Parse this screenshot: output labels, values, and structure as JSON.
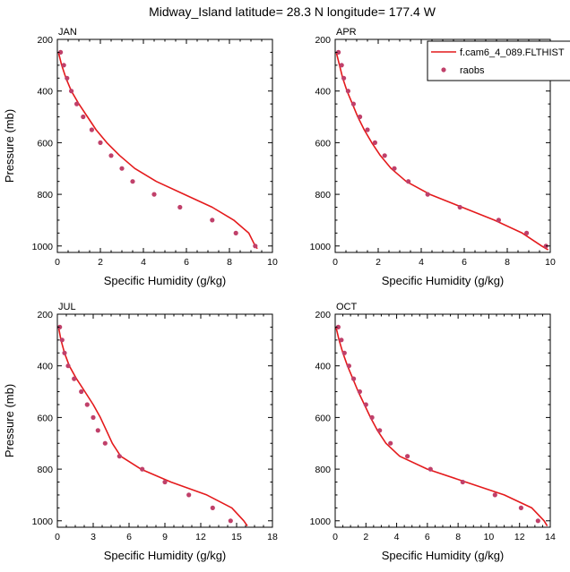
{
  "figure": {
    "title": "Midway_Island  latitude= 28.3 N longitude= 177.4 W",
    "colors": {
      "model": "#e41a1c",
      "obs": "#c0406a",
      "axis": "#000000"
    }
  },
  "legend": {
    "items": [
      {
        "label": "f.cam6_4_089.FLTHIST",
        "style": "line"
      },
      {
        "label": "raobs",
        "style": "marker"
      }
    ]
  },
  "chart_data": [
    {
      "type": "line",
      "title": "JAN",
      "xlabel": "Specific Humidity (g/kg)",
      "ylabel": "Pressure (mb)",
      "xlim": [
        0,
        10
      ],
      "ylim": [
        1025,
        200
      ],
      "xticks": [
        0,
        2,
        4,
        6,
        8,
        10
      ],
      "yticks": [
        200,
        400,
        600,
        800,
        1000
      ],
      "series": [
        {
          "name": "f.cam6_4_089.FLTHIST",
          "kind": "line",
          "x": [
            0.05,
            0.2,
            0.4,
            0.65,
            1.0,
            1.4,
            1.8,
            2.3,
            2.9,
            3.6,
            4.6,
            5.9,
            7.2,
            8.2,
            8.9,
            9.2,
            9.3
          ],
          "y": [
            250,
            300,
            350,
            400,
            450,
            500,
            550,
            600,
            650,
            700,
            750,
            800,
            850,
            900,
            950,
            1000,
            1010
          ]
        },
        {
          "name": "raobs",
          "kind": "scatter",
          "x": [
            0.15,
            0.3,
            0.45,
            0.65,
            0.9,
            1.2,
            1.6,
            2.0,
            2.5,
            3.0,
            3.5,
            4.5,
            5.7,
            7.2,
            8.3,
            9.2
          ],
          "y": [
            250,
            300,
            350,
            400,
            450,
            500,
            550,
            600,
            650,
            700,
            750,
            800,
            850,
            900,
            950,
            1000
          ]
        }
      ]
    },
    {
      "type": "line",
      "title": "APR",
      "xlabel": "Specific Humidity (g/kg)",
      "ylabel": "",
      "xlim": [
        0,
        10
      ],
      "ylim": [
        1025,
        200
      ],
      "xticks": [
        0,
        2,
        4,
        6,
        8,
        10
      ],
      "yticks": [
        200,
        400,
        600,
        800,
        1000
      ],
      "series": [
        {
          "name": "f.cam6_4_089.FLTHIST",
          "kind": "line",
          "x": [
            0.05,
            0.2,
            0.35,
            0.55,
            0.8,
            1.05,
            1.35,
            1.7,
            2.1,
            2.6,
            3.3,
            4.4,
            5.9,
            7.4,
            8.7,
            9.6,
            9.9
          ],
          "y": [
            250,
            300,
            350,
            400,
            450,
            500,
            550,
            600,
            650,
            700,
            750,
            800,
            850,
            900,
            950,
            1000,
            1015
          ]
        },
        {
          "name": "raobs",
          "kind": "scatter",
          "x": [
            0.15,
            0.3,
            0.4,
            0.6,
            0.85,
            1.15,
            1.5,
            1.85,
            2.3,
            2.75,
            3.4,
            4.3,
            5.8,
            7.6,
            8.9,
            9.8
          ],
          "y": [
            250,
            300,
            350,
            400,
            450,
            500,
            550,
            600,
            650,
            700,
            750,
            800,
            850,
            900,
            950,
            1000
          ]
        }
      ]
    },
    {
      "type": "line",
      "title": "JUL",
      "xlabel": "Specific Humidity (g/kg)",
      "ylabel": "Pressure (mb)",
      "xlim": [
        0,
        18
      ],
      "ylim": [
        1025,
        200
      ],
      "xticks": [
        0,
        3,
        6,
        9,
        12,
        15,
        18
      ],
      "yticks": [
        200,
        400,
        600,
        800,
        1000
      ],
      "series": [
        {
          "name": "f.cam6_4_089.FLTHIST",
          "kind": "line",
          "x": [
            0.1,
            0.3,
            0.6,
            1.0,
            1.6,
            2.3,
            3.0,
            3.6,
            4.1,
            4.6,
            5.3,
            7.0,
            9.5,
            12.5,
            14.6,
            15.6,
            15.9
          ],
          "y": [
            250,
            300,
            350,
            400,
            450,
            500,
            550,
            600,
            650,
            700,
            750,
            800,
            850,
            900,
            950,
            1000,
            1020
          ]
        },
        {
          "name": "raobs",
          "kind": "scatter",
          "x": [
            0.2,
            0.4,
            0.6,
            0.9,
            1.4,
            2.0,
            2.5,
            3.0,
            3.4,
            4.0,
            5.2,
            7.1,
            9.0,
            11.0,
            13.0,
            14.5
          ],
          "y": [
            250,
            300,
            350,
            400,
            450,
            500,
            550,
            600,
            650,
            700,
            750,
            800,
            850,
            900,
            950,
            1000
          ]
        }
      ]
    },
    {
      "type": "line",
      "title": "OCT",
      "xlabel": "Specific Humidity (g/kg)",
      "ylabel": "",
      "xlim": [
        0,
        14
      ],
      "ylim": [
        1025,
        200
      ],
      "xticks": [
        0,
        2,
        4,
        6,
        8,
        10,
        12,
        14
      ],
      "yticks": [
        200,
        400,
        600,
        800,
        1000
      ],
      "series": [
        {
          "name": "f.cam6_4_089.FLTHIST",
          "kind": "line",
          "x": [
            0.05,
            0.25,
            0.5,
            0.8,
            1.15,
            1.5,
            1.9,
            2.3,
            2.75,
            3.3,
            4.2,
            6.0,
            8.5,
            11.0,
            12.8,
            13.6,
            13.8
          ],
          "y": [
            250,
            300,
            350,
            400,
            450,
            500,
            550,
            600,
            650,
            700,
            750,
            800,
            850,
            900,
            950,
            1000,
            1020
          ]
        },
        {
          "name": "raobs",
          "kind": "scatter",
          "x": [
            0.2,
            0.4,
            0.6,
            0.9,
            1.2,
            1.6,
            2.0,
            2.4,
            2.9,
            3.6,
            4.7,
            6.2,
            8.3,
            10.4,
            12.1,
            13.2
          ],
          "y": [
            250,
            300,
            350,
            400,
            450,
            500,
            550,
            600,
            650,
            700,
            750,
            800,
            850,
            900,
            950,
            1000
          ]
        }
      ]
    }
  ]
}
